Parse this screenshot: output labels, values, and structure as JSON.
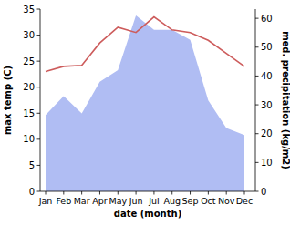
{
  "chart_data": {
    "type": "line",
    "xlabel": "date (month)",
    "ylabel": "max temp (C)",
    "y2label": "med. precipitation (kg/m2)",
    "categories": [
      "Jan",
      "Feb",
      "Mar",
      "Apr",
      "May",
      "Jun",
      "Jul",
      "Aug",
      "Sep",
      "Oct",
      "Nov",
      "Dec"
    ],
    "series": [
      {
        "type": "area",
        "axis": "y2",
        "color": "#b0bdf3",
        "values": [
          26.5,
          33,
          27,
          38,
          42,
          61,
          56,
          56,
          52.5,
          31.5,
          22,
          19.5
        ]
      },
      {
        "type": "line",
        "color": "#cd5c5c",
        "values": [
          23,
          24,
          24.2,
          28.5,
          31.5,
          30.5,
          33.5,
          31,
          30.5,
          29,
          26.5,
          24
        ]
      }
    ],
    "ylim": [
      0,
      35
    ],
    "yticks": [
      0,
      5,
      10,
      15,
      20,
      25,
      30,
      35
    ],
    "y2lim": [
      0,
      63.2
    ],
    "y2ticks": [
      0,
      10,
      20,
      30,
      40,
      50,
      60
    ],
    "grid": false
  }
}
